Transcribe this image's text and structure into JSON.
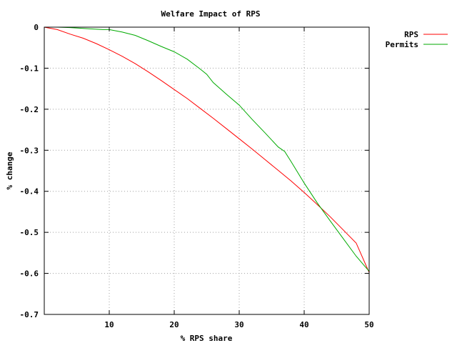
{
  "chart_data": {
    "type": "line",
    "title": "Welfare Impact of RPS",
    "xlabel": "% RPS share",
    "ylabel": "% change",
    "xlim": [
      0,
      50
    ],
    "ylim": [
      -0.7,
      0
    ],
    "xticks": [
      10,
      20,
      30,
      40,
      50
    ],
    "yticks": [
      0,
      -0.1,
      -0.2,
      -0.3,
      -0.4,
      -0.5,
      -0.6,
      -0.7
    ],
    "ytick_labels": [
      "0",
      "-0.1",
      "-0.2",
      "-0.3",
      "-0.4",
      "-0.5",
      "-0.6",
      "-0.7"
    ],
    "grid": true,
    "legend_position": "top-right outside",
    "series": [
      {
        "name": "RPS",
        "color": "#ff0000",
        "x": [
          0,
          2,
          4,
          6,
          8,
          10,
          12,
          14,
          16,
          18,
          20,
          22,
          24,
          26,
          28,
          30,
          32,
          34,
          36,
          38,
          40,
          42,
          44,
          46,
          48,
          50
        ],
        "y": [
          0,
          -0.006,
          -0.017,
          -0.027,
          -0.04,
          -0.055,
          -0.071,
          -0.089,
          -0.109,
          -0.13,
          -0.152,
          -0.174,
          -0.198,
          -0.222,
          -0.247,
          -0.272,
          -0.297,
          -0.323,
          -0.349,
          -0.375,
          -0.403,
          -0.432,
          -0.462,
          -0.494,
          -0.526,
          -0.598
        ]
      },
      {
        "name": "Permits",
        "color": "#00aa00",
        "x": [
          0,
          2,
          4,
          6,
          8,
          9,
          10,
          12,
          14,
          16,
          18,
          20,
          22,
          24,
          25,
          26,
          28,
          30,
          32,
          34,
          36,
          37,
          38,
          40,
          42,
          44,
          46,
          48,
          50
        ],
        "y": [
          0,
          0,
          -0.001,
          -0.003,
          -0.005,
          -0.006,
          -0.006,
          -0.012,
          -0.02,
          -0.033,
          -0.047,
          -0.06,
          -0.078,
          -0.102,
          -0.115,
          -0.135,
          -0.163,
          -0.19,
          -0.225,
          -0.258,
          -0.292,
          -0.303,
          -0.328,
          -0.38,
          -0.428,
          -0.472,
          -0.515,
          -0.558,
          -0.595
        ]
      }
    ]
  }
}
